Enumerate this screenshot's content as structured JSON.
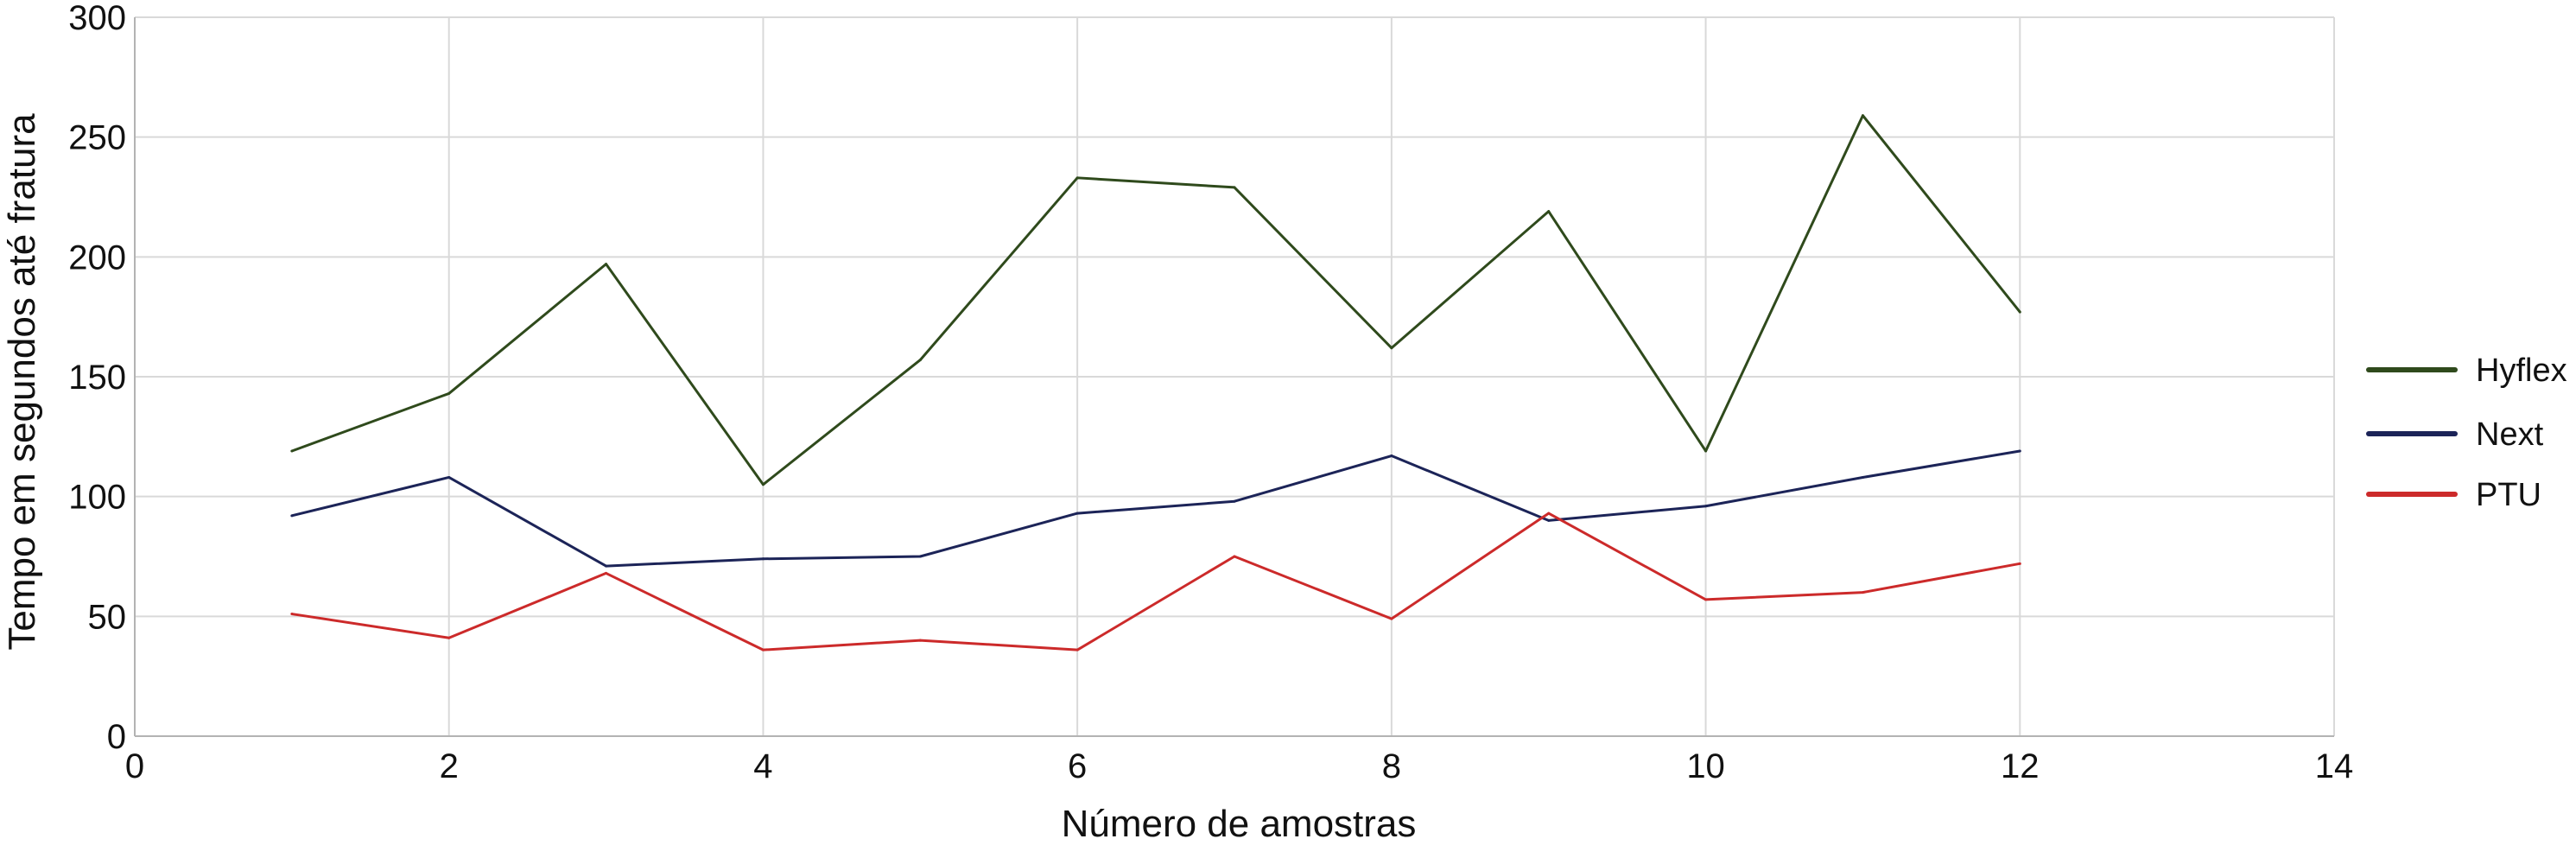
{
  "chart_data": {
    "type": "line",
    "title": "",
    "xlabel": "Número de amostras",
    "ylabel": "Tempo em segundos até fratura",
    "xlim": [
      0,
      14
    ],
    "ylim": [
      0,
      300
    ],
    "x_ticks": [
      "0",
      "2",
      "4",
      "6",
      "8",
      "10",
      "12",
      "14"
    ],
    "y_ticks": [
      "0",
      "50",
      "100",
      "150",
      "200",
      "250",
      "300"
    ],
    "grid": true,
    "legend_position": "right",
    "x": [
      1,
      2,
      3,
      4,
      5,
      6,
      7,
      8,
      9,
      10,
      11,
      12
    ],
    "series": [
      {
        "name": "Hyflex",
        "color": "#2f4a1c",
        "values": [
          119,
          143,
          197,
          105,
          157,
          233,
          229,
          162,
          219,
          119,
          259,
          177
        ]
      },
      {
        "name": "Next",
        "color": "#1c2458",
        "values": [
          92,
          108,
          71,
          74,
          75,
          93,
          98,
          117,
          90,
          96,
          108,
          119
        ]
      },
      {
        "name": "PTU",
        "color": "#cc2a2a",
        "values": [
          51,
          41,
          68,
          36,
          40,
          36,
          75,
          49,
          93,
          57,
          60,
          72
        ]
      }
    ]
  }
}
